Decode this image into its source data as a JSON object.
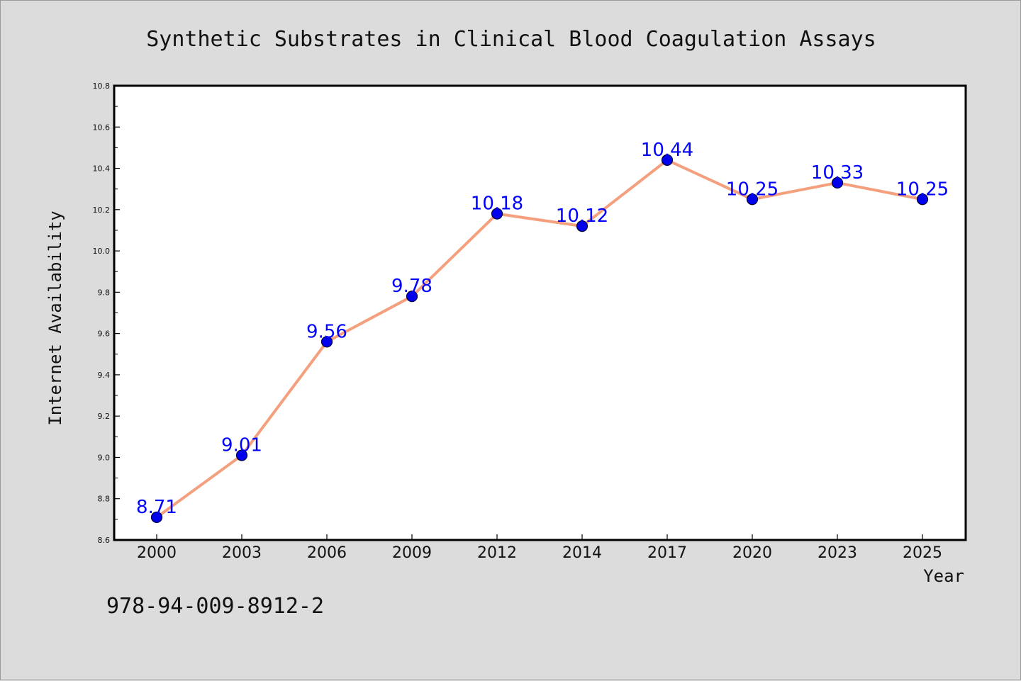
{
  "chart_data": {
    "type": "line",
    "title": "Synthetic Substrates in Clinical Blood Coagulation Assays",
    "xlabel": "Year",
    "ylabel": "Internet Availability",
    "categories": [
      "2000",
      "2003",
      "2006",
      "2009",
      "2012",
      "2014",
      "2017",
      "2020",
      "2023",
      "2025"
    ],
    "series": [
      {
        "values": [
          8.71,
          9.01,
          9.56,
          9.78,
          10.18,
          10.12,
          10.44,
          10.25,
          10.33,
          10.25
        ],
        "data_labels": [
          "8.71",
          "9.01",
          "9.56",
          "9.78",
          "10.18",
          "10.12",
          "10.44",
          "10.25",
          "10.33",
          "10.25"
        ]
      }
    ],
    "ylim": [
      8.6,
      10.8
    ],
    "yticks": [
      "8.6",
      "8.8",
      "9.0",
      "9.2",
      "9.4",
      "9.6",
      "9.8",
      "10.0",
      "10.2",
      "10.4",
      "10.6",
      "10.8"
    ],
    "grid": false,
    "legend": "none",
    "colors": {
      "line": "#f4a07e",
      "marker_fill": "#0000ee",
      "marker_edge": "#000033",
      "data_label": "#0000ff",
      "plot_background": "#ffffff",
      "figure_background": "#dcdcdc"
    }
  },
  "footer": {
    "isbn": "978-94-009-8912-2"
  }
}
